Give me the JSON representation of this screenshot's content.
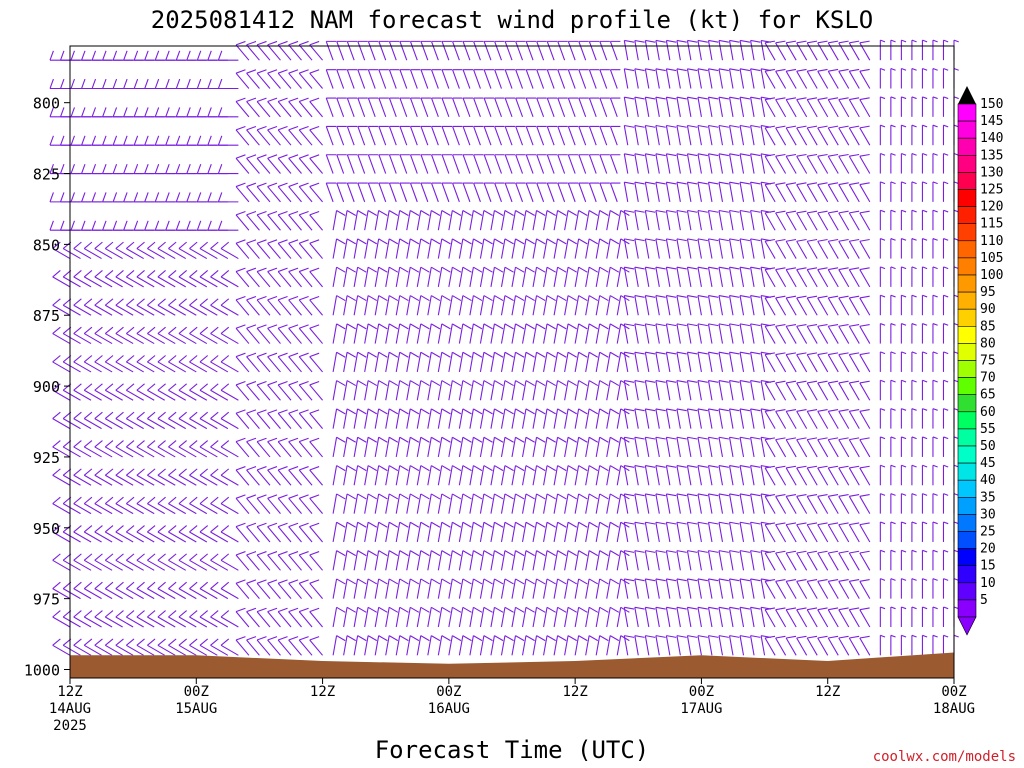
{
  "chart_data": {
    "type": "wind-barb-time-height",
    "title": "2025081412 NAM forecast wind profile (kt) for KSLO",
    "xlabel": "Forecast Time (UTC)",
    "ylabel": "",
    "y_axis": {
      "unit": "hPa",
      "inverted": true,
      "range": [
        780,
        1003
      ],
      "ticks": [
        "800",
        "825",
        "850",
        "875",
        "900",
        "925",
        "950",
        "975",
        "1000"
      ]
    },
    "x_axis": {
      "range": [
        "2025-08-14T12Z",
        "2025-08-18T00Z"
      ],
      "step_hours": 1,
      "ticks": [
        {
          "time": "2025-08-14T12Z",
          "line1": "12Z",
          "line2": "14AUG",
          "line3": "2025"
        },
        {
          "time": "2025-08-15T00Z",
          "line1": "00Z",
          "line2": "15AUG",
          "line3": ""
        },
        {
          "time": "2025-08-15T12Z",
          "line1": "12Z",
          "line2": "",
          "line3": ""
        },
        {
          "time": "2025-08-16T00Z",
          "line1": "00Z",
          "line2": "16AUG",
          "line3": ""
        },
        {
          "time": "2025-08-16T12Z",
          "line1": "12Z",
          "line2": "",
          "line3": ""
        },
        {
          "time": "2025-08-17T00Z",
          "line1": "00Z",
          "line2": "17AUG",
          "line3": ""
        },
        {
          "time": "2025-08-17T12Z",
          "line1": "12Z",
          "line2": "",
          "line3": ""
        },
        {
          "time": "2025-08-18T00Z",
          "line1": "00Z",
          "line2": "18AUG",
          "line3": ""
        }
      ]
    },
    "levels_hPa": [
      785,
      795,
      805,
      815,
      825,
      835,
      845,
      855,
      865,
      875,
      885,
      895,
      905,
      915,
      925,
      935,
      945,
      955,
      965,
      975,
      985,
      995
    ],
    "wind_regimes": [
      {
        "period": "2025-08-14T12Z to 2025-08-15T04Z",
        "levels": "785-850 hPa",
        "direction_deg": 270,
        "speed_kt": 10
      },
      {
        "period": "2025-08-14T12Z to 2025-08-15T04Z",
        "levels": "850-1000 hPa",
        "direction_deg": 300,
        "speed_kt": 10
      },
      {
        "period": "2025-08-15T04Z to 2025-08-15T12Z",
        "levels": "785-1000 hPa",
        "direction_deg": 320,
        "speed_kt": 10
      },
      {
        "period": "2025-08-15T12Z to 2025-08-16T16Z",
        "levels": "785-840 hPa",
        "direction_deg": 340,
        "speed_kt": 10
      },
      {
        "period": "2025-08-15T12Z to 2025-08-16T16Z",
        "levels": "840-1000 hPa",
        "direction_deg": 10,
        "speed_kt": 10
      },
      {
        "period": "2025-08-16T16Z to 2025-08-17T06Z",
        "levels": "785-1000 hPa",
        "direction_deg": 350,
        "speed_kt": 10
      },
      {
        "period": "2025-08-17T06Z to 2025-08-17T16Z",
        "levels": "785-1000 hPa",
        "direction_deg": 330,
        "speed_kt": 10
      },
      {
        "period": "2025-08-17T16Z to 2025-08-18T00Z",
        "levels": "785-1000 hPa",
        "direction_deg": 360,
        "speed_kt": 5
      }
    ],
    "surface_pressure_hPa": {
      "description": "Terrain/surface pressure shading at the bottom of the profile",
      "times_hours_from_start": [
        0,
        12,
        24,
        36,
        48,
        60,
        72,
        84
      ],
      "values": [
        995,
        995,
        997,
        998,
        997,
        995,
        997,
        994
      ]
    },
    "colorbar": {
      "labels": [
        "150",
        "145",
        "140",
        "135",
        "130",
        "125",
        "120",
        "115",
        "110",
        "105",
        "100",
        "95",
        "90",
        "85",
        "80",
        "75",
        "70",
        "65",
        "60",
        "55",
        "50",
        "45",
        "40",
        "35",
        "30",
        "25",
        "20",
        "15",
        "10",
        "5"
      ],
      "colors": [
        "#ff00ff",
        "#ff00e0",
        "#ff00b0",
        "#ff0080",
        "#ff0050",
        "#ff0000",
        "#ff2000",
        "#ff4000",
        "#ff6600",
        "#ff8000",
        "#ff9900",
        "#ffb000",
        "#ffd000",
        "#ffff00",
        "#e0ff00",
        "#a0ff00",
        "#60ff00",
        "#30e030",
        "#00ff60",
        "#00ffa0",
        "#00ffc8",
        "#00e6e6",
        "#00c8ff",
        "#00a0ff",
        "#0078ff",
        "#0050ff",
        "#0000ff",
        "#3000ff",
        "#6000ff",
        "#8a00ff"
      ],
      "top_arrow_color": "#000000",
      "bottom_arrow_color": "#8a00ff"
    },
    "barb_color": "#7a1fe0",
    "terrain_color": "#9c5a30"
  },
  "credit": "coolwx.com/models"
}
